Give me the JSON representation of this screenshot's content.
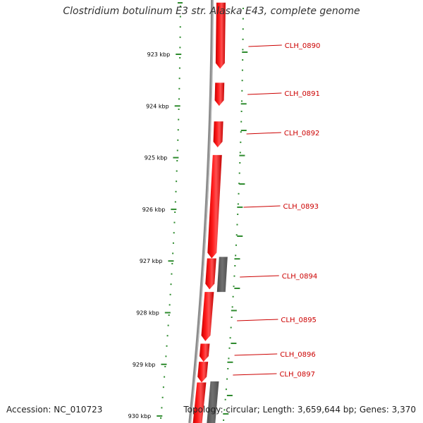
{
  "title": "Clostridium botulinum E3 str. Alaska E43, complete genome",
  "footer": {
    "accession": "Accession: NC_010723",
    "summary": "Topology: circular; Length: 3,659,644 bp; Genes: 3,370"
  },
  "colors": {
    "forward_cds": "#ff1a1a",
    "other_feature": "#707070",
    "ruler": "#2e8b2e",
    "backbone": "#8c8c8c",
    "gene_label": "#cc0000",
    "tick_label": "#000000"
  },
  "ruler_ticks": [
    {
      "label": "923 kbp",
      "kbp": 923
    },
    {
      "label": "924 kbp",
      "kbp": 924
    },
    {
      "label": "925 kbp",
      "kbp": 925
    },
    {
      "label": "926 kbp",
      "kbp": 926
    },
    {
      "label": "927 kbp",
      "kbp": 927
    },
    {
      "label": "928 kbp",
      "kbp": 928
    },
    {
      "label": "929 kbp",
      "kbp": 929
    },
    {
      "label": "930 kbp",
      "kbp": 930
    }
  ],
  "genes": [
    {
      "name": "CLH_0890",
      "strand": "+"
    },
    {
      "name": "CLH_0891",
      "strand": "+"
    },
    {
      "name": "CLH_0892",
      "strand": "+"
    },
    {
      "name": "CLH_0893",
      "strand": "+"
    },
    {
      "name": "CLH_0894",
      "strand": "+"
    },
    {
      "name": "CLH_0895",
      "strand": "+"
    },
    {
      "name": "CLH_0896",
      "strand": "+"
    },
    {
      "name": "CLH_0897",
      "strand": "+"
    }
  ]
}
